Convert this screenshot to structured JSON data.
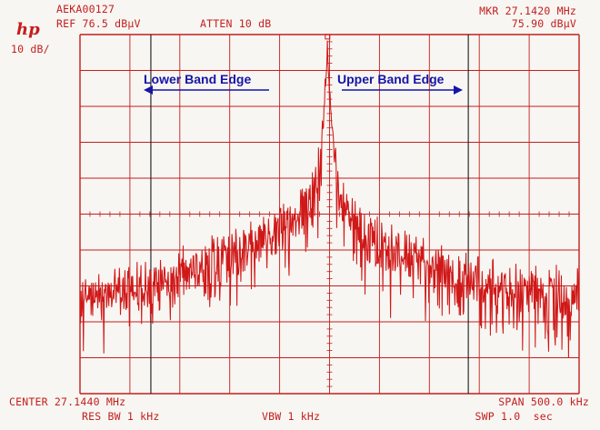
{
  "header": {
    "logo": "hp",
    "trace_id": "AEKA00127",
    "ref_level": "REF 76.5 dBµV",
    "attenuation": "ATTEN 10 dB",
    "scale": "10 dB/",
    "marker_freq": "MKR 27.1420 MHz",
    "marker_level": "75.90 dBµV"
  },
  "footer": {
    "center": "CENTER 27.1440 MHz",
    "span": "SPAN 500.0 kHz",
    "res_bw": "RES BW 1 kHz",
    "vbw": "VBW 1 kHz",
    "sweep": "SWP 1.0  sec"
  },
  "colors": {
    "trace": "#d01818",
    "grid": "#c41e1e",
    "band_edge_text": "#1515a8",
    "background": "#f7f6f2"
  },
  "chart_data": {
    "type": "line",
    "title": "",
    "xlabel": "",
    "ylabel": "",
    "x_unit": "MHz",
    "y_unit": "dBµV",
    "xlim": [
      26.894,
      27.394
    ],
    "ylim": [
      -23.5,
      76.5
    ],
    "grid": true,
    "divisions": {
      "x": 10,
      "y": 10
    },
    "annotations": [
      {
        "text": "Lower Band Edge",
        "x": 26.965,
        "arrow": "left"
      },
      {
        "text": "Upper Band Edge",
        "x": 27.283,
        "arrow": "right"
      }
    ],
    "series": [
      {
        "style": "noisy-envelope",
        "x": [
          26.894,
          26.919,
          26.944,
          26.969,
          26.994,
          27.019,
          27.044,
          27.069,
          27.094,
          27.104,
          27.114,
          27.124,
          27.13,
          27.134,
          27.138,
          27.14,
          27.142,
          27.144,
          27.148,
          27.154,
          27.164,
          27.174,
          27.194,
          27.219,
          27.244,
          27.269,
          27.294,
          27.319,
          27.344,
          27.369,
          27.394
        ],
        "y": [
          8.5,
          9.5,
          11,
          13.5,
          16,
          18.5,
          21,
          24,
          28,
          30,
          33,
          37,
          40,
          46,
          55,
          65,
          75.9,
          62,
          48,
          38,
          32,
          27,
          24,
          21,
          18.5,
          16,
          14,
          13,
          12,
          11,
          10
        ]
      }
    ]
  }
}
